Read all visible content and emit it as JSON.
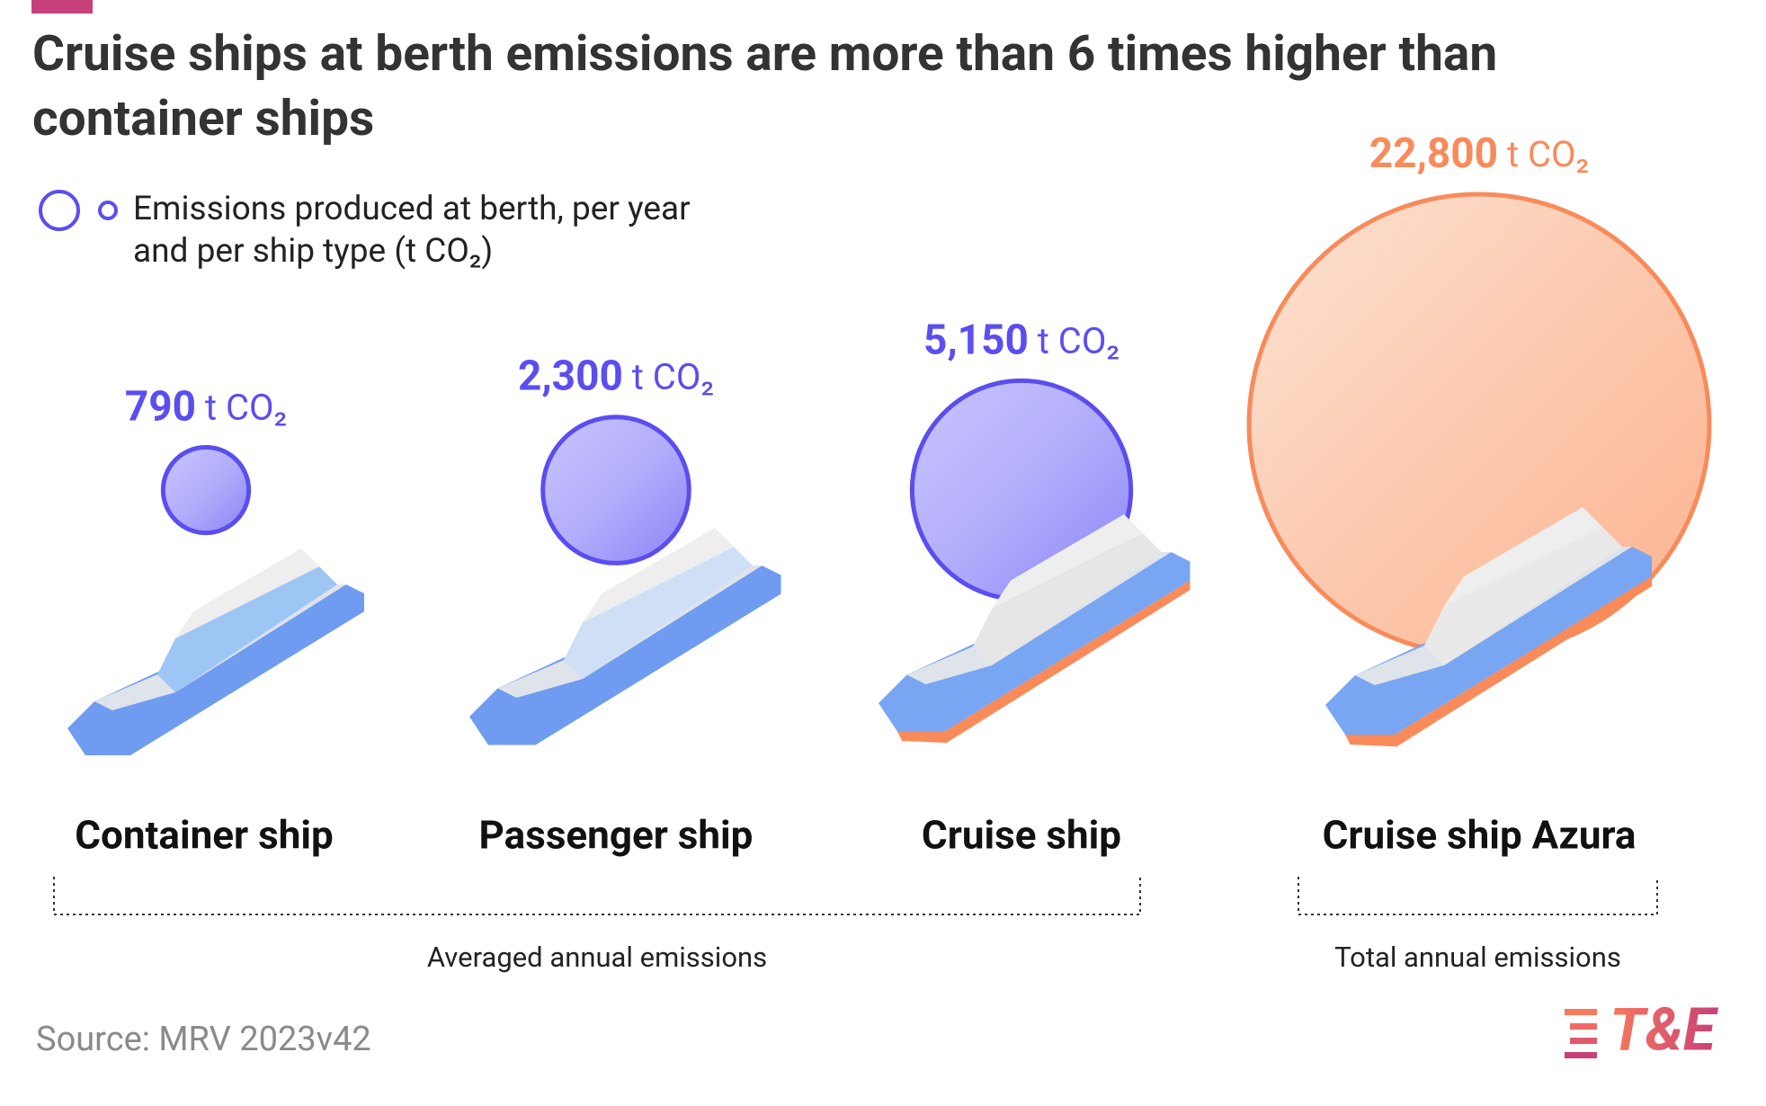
{
  "chart_data": {
    "type": "bubble",
    "title": "Cruise ships at berth emissions are more than 6 times higher than container ships",
    "legend": "Emissions produced at berth, per year and per ship type (t CO₂)",
    "categories": [
      "Container ship",
      "Passenger ship",
      "Cruise ship",
      "Cruise ship Azura"
    ],
    "values": [
      790,
      2300,
      5150,
      22800
    ],
    "value_labels": [
      "790",
      "2,300",
      "5,150",
      "22,800"
    ],
    "unit": "t CO₂",
    "colors": [
      "#5a4ef0",
      "#5a4ef0",
      "#5a4ef0",
      "#f98a5a"
    ],
    "groups": [
      {
        "label": "Averaged annual emissions",
        "categories": [
          0,
          1,
          2
        ]
      },
      {
        "label": "Total annual emissions",
        "categories": [
          3
        ]
      }
    ],
    "source": "Source: MRV 2023v42",
    "logo": "T&E"
  }
}
